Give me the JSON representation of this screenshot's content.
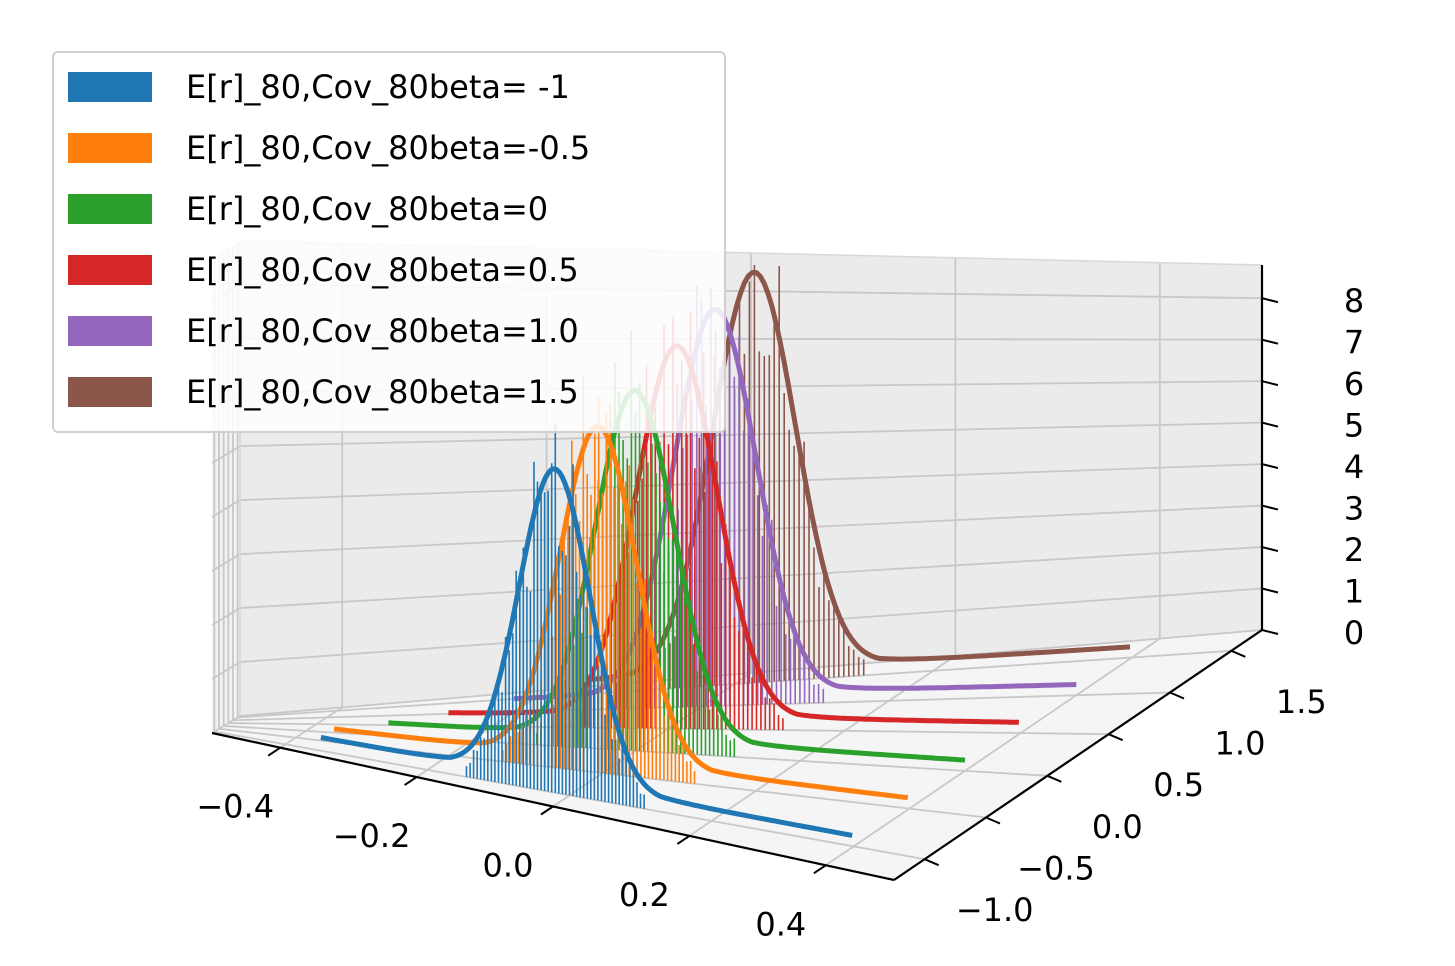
{
  "chart_data": {
    "type": "3d-histogram-with-density",
    "title": "",
    "xlabel": "",
    "ylabel": "",
    "zlabel": "",
    "x_ticks": [
      "−0.4",
      "−0.2",
      "0.0",
      "0.2",
      "0.4"
    ],
    "y_ticks": [
      "−1.0",
      "−0.5",
      "0.0",
      "0.5",
      "1.0",
      "1.5"
    ],
    "z_ticks": [
      "0",
      "1",
      "2",
      "3",
      "4",
      "5",
      "6",
      "7",
      "8"
    ],
    "xlim": [
      -0.5,
      0.5
    ],
    "ylim": [
      -1.25,
      1.75
    ],
    "zlim": [
      0,
      8.8
    ],
    "grid": true,
    "legend_position": "upper-left",
    "series": [
      {
        "name": "E[r]_80,Cov_80beta= -1",
        "color": "#1f77b4",
        "beta": -1.0,
        "mean": -0.02,
        "std": 0.05,
        "peak": 6.5,
        "curve_x": [
          -0.35,
          0.4
        ]
      },
      {
        "name": "E[r]_80,Cov_80beta=-0.5",
        "color": "#ff7f0e",
        "beta": -0.5,
        "mean": -0.005,
        "std": 0.05,
        "peak": 7.0,
        "curve_x": [
          -0.35,
          0.4
        ]
      },
      {
        "name": "E[r]_80,Cov_80beta=0",
        "color": "#2ca02c",
        "beta": 0.0,
        "mean": 0.0,
        "std": 0.048,
        "peak": 7.3,
        "curve_x": [
          -0.3,
          0.4
        ]
      },
      {
        "name": "E[r]_80,Cov_80beta=0.5",
        "color": "#d62728",
        "beta": 0.5,
        "mean": 0.01,
        "std": 0.046,
        "peak": 7.8,
        "curve_x": [
          -0.25,
          0.4
        ]
      },
      {
        "name": "E[r]_80,Cov_80beta=1.0",
        "color": "#9467bd",
        "beta": 1.0,
        "mean": 0.015,
        "std": 0.044,
        "peak": 8.1,
        "curve_x": [
          -0.2,
          0.4
        ]
      },
      {
        "name": "E[r]_80,Cov_80beta=1.5",
        "color": "#8c564b",
        "beta": 1.5,
        "mean": 0.02,
        "std": 0.042,
        "peak": 8.4,
        "curve_x": [
          -0.15,
          0.4
        ]
      }
    ]
  }
}
